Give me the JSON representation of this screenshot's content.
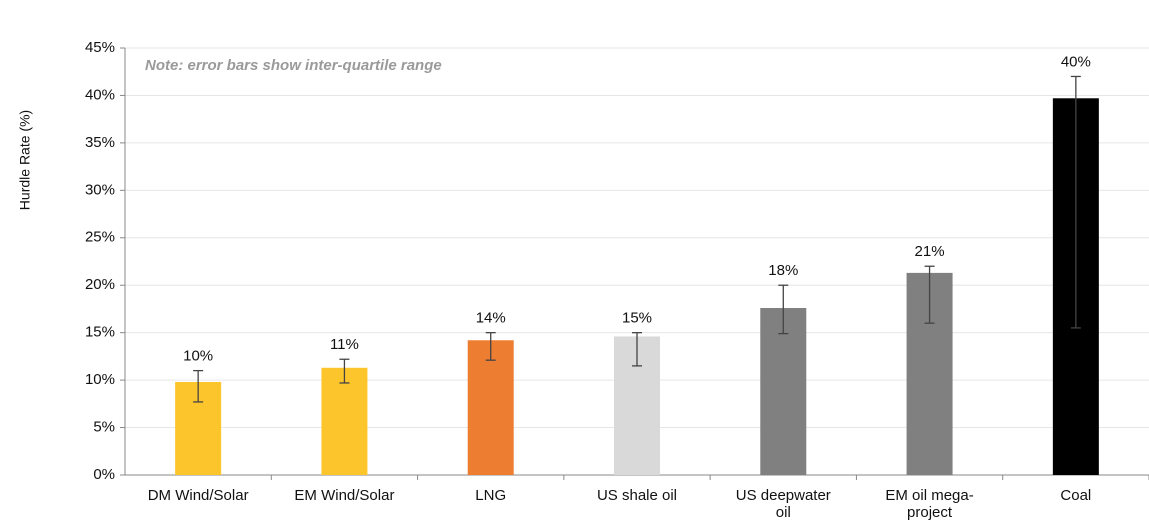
{
  "chart_data": {
    "type": "bar",
    "y_label": "Hurdle Rate (%)",
    "note": "Note: error bars show inter-quartile range",
    "categories": [
      "DM Wind/Solar",
      "EM Wind/Solar",
      "LNG",
      "US shale oil",
      "US deepwater oil",
      "EM oil mega-project",
      "Coal"
    ],
    "values": [
      9.8,
      11.3,
      14.2,
      14.6,
      17.6,
      21.3,
      39.7
    ],
    "value_labels": [
      "10%",
      "11%",
      "14%",
      "15%",
      "18%",
      "21%",
      "40%"
    ],
    "q1": [
      7.7,
      9.7,
      12.1,
      11.5,
      14.9,
      16.0,
      15.5
    ],
    "q3": [
      11.0,
      12.2,
      15.0,
      15.0,
      20.0,
      22.0,
      42.0
    ],
    "colors": [
      "#fcc52c",
      "#fcc52c",
      "#ed7d31",
      "#d9d9d9",
      "#808080",
      "#808080",
      "#000000"
    ],
    "ylim": [
      0,
      45
    ],
    "yticks": [
      {
        "value": 0,
        "label": "0%"
      },
      {
        "value": 5,
        "label": "5%"
      },
      {
        "value": 10,
        "label": "10%"
      },
      {
        "value": 15,
        "label": "15%"
      },
      {
        "value": 20,
        "label": "20%"
      },
      {
        "value": 25,
        "label": "25%"
      },
      {
        "value": 30,
        "label": "30%"
      },
      {
        "value": 35,
        "label": "35%"
      },
      {
        "value": 40,
        "label": "40%"
      },
      {
        "value": 45,
        "label": "45%"
      }
    ],
    "grid": true
  }
}
